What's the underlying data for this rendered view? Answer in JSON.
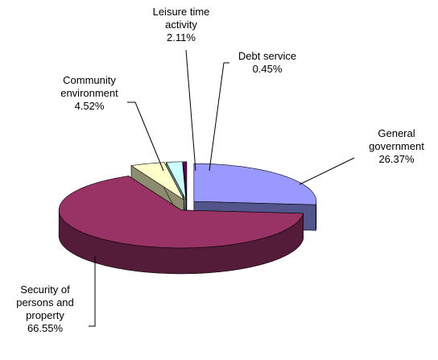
{
  "chart_data": {
    "type": "pie",
    "categories": [
      "General government",
      "Security of persons and property",
      "Community environment",
      "Leisure time activity",
      "Debt service"
    ],
    "values": [
      26.37,
      66.55,
      4.52,
      2.11,
      0.45
    ],
    "value_labels": [
      "26.37%",
      "66.55%",
      "4.52%",
      "2.11%",
      "0.45%"
    ],
    "colors": [
      "#9999ff",
      "#993366",
      "#ffffcc",
      "#ccffff",
      "#660066"
    ]
  }
}
